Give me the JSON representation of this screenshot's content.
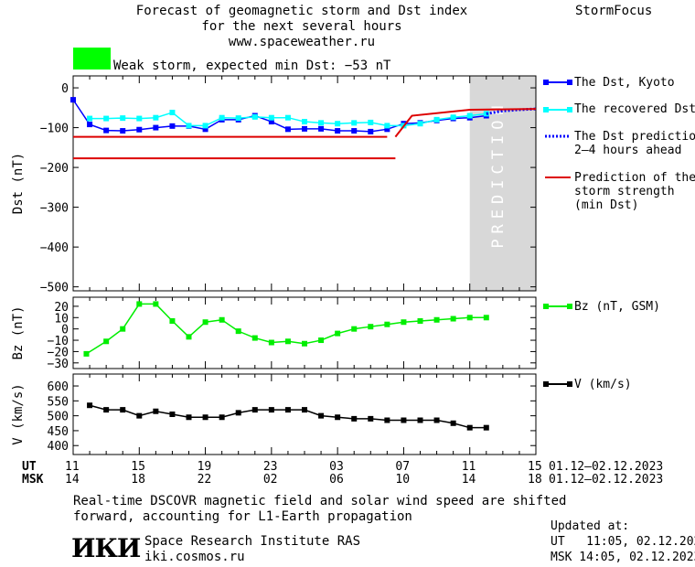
{
  "header": {
    "title_line1": "Forecast of geomagnetic storm and Dst index",
    "title_line2": "for the next several hours",
    "url": "www.spaceweather.ru",
    "brand": "StormFocus"
  },
  "status": {
    "badge_color": "#00ff00",
    "text": "Weak storm, expected min Dst: −53 nT"
  },
  "prediction_label": "PREDICTION",
  "legend": {
    "dst_kyoto": "The Dst, Kyoto",
    "recovered": "The recovered Dst",
    "prediction_line1": "The Dst prediction",
    "prediction_line2": "2–4 hours ahead",
    "strength_line1": "Prediction of the",
    "strength_line2": "storm strength",
    "strength_line3": "(min Dst)",
    "bz": "Bz (nT, GSM)",
    "v": "V (km/s)"
  },
  "time_axis": {
    "ut_label": "UT",
    "msk_label": "MSK",
    "ut_ticks": [
      "11",
      "15",
      "19",
      "23",
      "03",
      "07",
      "11",
      "15"
    ],
    "msk_ticks": [
      "14",
      "18",
      "22",
      "02",
      "06",
      "10",
      "14",
      "18"
    ],
    "ut_range": "01.12–02.12.2023",
    "msk_range": "01.12–02.12.2023"
  },
  "footer": {
    "note_line1": "Real-time DSCOVR magnetic field and solar wind speed are shifted",
    "note_line2": "forward, accounting for L1-Earth propagation",
    "institute": "Space Research Institute RAS",
    "site": "iki.cosmos.ru",
    "logo": "ИКИ",
    "updated_label": "Updated at:",
    "updated_ut": "UT   11:05, 02.12.2023",
    "updated_msk": "MSK 14:05, 02.12.2023"
  },
  "colors": {
    "dst": "#0000ff",
    "recovered": "#00ffff",
    "prediction": "#0000ff",
    "strength": "#dd0000",
    "bz": "#00ee00",
    "v": "#000000",
    "prediction_zone": "#d8d8d8"
  },
  "chart_data": [
    {
      "type": "line",
      "panel": "dst",
      "ylabel": "Dst (nT)",
      "ylim": [
        -510,
        30
      ],
      "yticks": [
        0,
        -100,
        -200,
        -300,
        -400,
        -500
      ],
      "xlim": [
        0,
        28
      ],
      "prediction_start": 24,
      "series": [
        {
          "name": "The Dst, Kyoto",
          "x": [
            0,
            1,
            2,
            3,
            4,
            5,
            6,
            7,
            8,
            9,
            10,
            11,
            12,
            13,
            14,
            15,
            16,
            17,
            18,
            19,
            20,
            21,
            22,
            23,
            24,
            25
          ],
          "values": [
            -30,
            -92,
            -107,
            -108,
            -105,
            -100,
            -96,
            -96,
            -104,
            -80,
            -80,
            -70,
            -85,
            -104,
            -103,
            -103,
            -108,
            -108,
            -110,
            -104,
            -90,
            -88,
            -82,
            -77,
            -75,
            -70
          ]
        },
        {
          "name": "The recovered Dst",
          "x": [
            1,
            2,
            3,
            4,
            5,
            6,
            7,
            8,
            9,
            10,
            11,
            12,
            13,
            14,
            15,
            16,
            17,
            18,
            19,
            20,
            21,
            22,
            23,
            24,
            25
          ],
          "values": [
            -77,
            -77,
            -76,
            -77,
            -75,
            -62,
            -95,
            -95,
            -75,
            -76,
            -73,
            -75,
            -75,
            -85,
            -88,
            -90,
            -88,
            -87,
            -95,
            -95,
            -90,
            -80,
            -74,
            -70,
            -65
          ]
        },
        {
          "name": "The Dst prediction 2–4 hours ahead",
          "x": [
            25,
            26,
            27,
            28
          ],
          "values": [
            -65,
            -58,
            -55,
            -53
          ]
        },
        {
          "name": "Prediction of the storm strength (min Dst)",
          "segments": [
            {
              "x": [
                0,
                19
              ],
              "values": [
                -123,
                -123
              ]
            },
            {
              "x": [
                0,
                19.5
              ],
              "values": [
                -177,
                -177
              ]
            },
            {
              "x": [
                19.5,
                20.5,
                24,
                28
              ],
              "values": [
                -123,
                -70,
                -55,
                -53
              ]
            }
          ]
        }
      ]
    },
    {
      "type": "line",
      "panel": "bz",
      "ylabel": "Bz (nT)",
      "ylim": [
        -35,
        28
      ],
      "yticks": [
        20,
        10,
        0,
        -10,
        -20,
        -30
      ],
      "xlim": [
        0,
        28
      ],
      "series": [
        {
          "name": "Bz (nT, GSM)",
          "x": [
            0.8,
            2,
            3,
            4,
            5,
            6,
            7,
            8,
            9,
            10,
            11,
            12,
            13,
            14,
            15,
            16,
            17,
            18,
            19,
            20,
            21,
            22,
            23,
            24,
            25
          ],
          "values": [
            -22,
            -11,
            0,
            22,
            22,
            7,
            -7,
            6,
            8,
            -2,
            -8,
            -12,
            -11,
            -13,
            -10,
            -4,
            0,
            2,
            4,
            6,
            7,
            8,
            9,
            10,
            10
          ]
        }
      ]
    },
    {
      "type": "line",
      "panel": "v",
      "ylabel": "V (km/s)",
      "ylim": [
        370,
        640
      ],
      "yticks": [
        600,
        550,
        500,
        450,
        400
      ],
      "xlim": [
        0,
        28
      ],
      "series": [
        {
          "name": "V (km/s)",
          "x": [
            1,
            2,
            3,
            4,
            5,
            6,
            7,
            8,
            9,
            10,
            11,
            12,
            13,
            14,
            15,
            16,
            17,
            18,
            19,
            20,
            21,
            22,
            23,
            24,
            25
          ],
          "values": [
            535,
            520,
            520,
            500,
            515,
            505,
            495,
            495,
            495,
            510,
            520,
            520,
            520,
            520,
            500,
            495,
            490,
            490,
            485,
            485,
            485,
            485,
            475,
            460,
            460
          ]
        }
      ]
    }
  ]
}
